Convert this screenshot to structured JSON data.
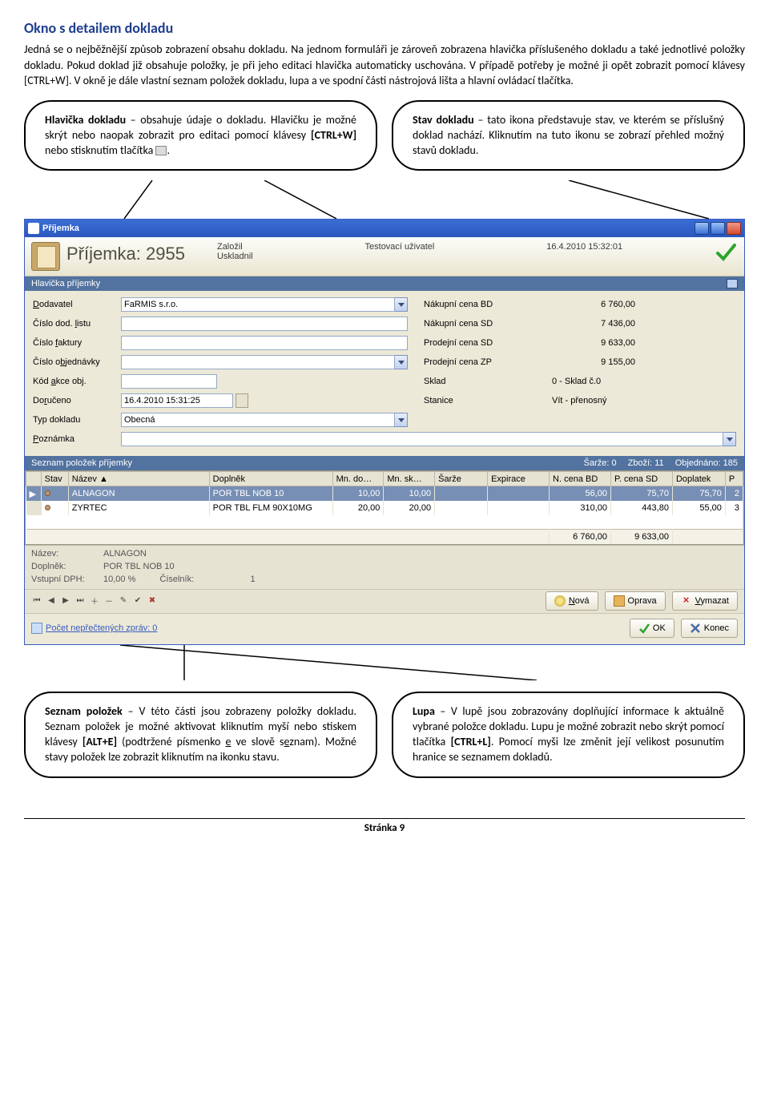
{
  "section_title": "Okno s detailem dokladu",
  "intro": "Jedná se o nejběžnější způsob zobrazení obsahu dokladu. Na jednom formuláři je zároveň zobrazena hlavička příslušeného dokladu a také jednotlivé položky dokladu. Pokud doklad již obsahuje položky, je při jeho editaci hlavička automaticky uschována. V případě potřeby je možné ji opět zobrazit pomocí klávesy [CTRL+W]. V okně je dále vlastní seznam položek dokladu, lupa a ve spodní části nástrojová lišta a hlavní ovládací tlačítka.",
  "callouts": {
    "top_left": "Hlavička dokladu – obsahuje údaje o dokladu. Hlavičku je možné skrýt nebo naopak zobrazit pro editaci pomocí klávesy [CTRL+W] nebo stisknutím tlačítka ",
    "top_right": "Stav dokladu – tato ikona představuje stav, ve kterém se příslušný doklad nachází. Kliknutím na tuto ikonu se zobrazí přehled možný stavů dokladu.",
    "bottom_left": "Seznam položek – V této části jsou zobrazeny položky dokladu. Seznam položek je možné aktivovat kliknutím myší nebo stiskem klávesy [ALT+E] (podtržené písmenko e ve slově seznam). Možné stavy položek lze zobrazit kliknutím na ikonku stavu.",
    "bottom_right": "Lupa – V lupě jsou zobrazovány doplňující informace k aktuálně vybrané položce dokladu. Lupu je možné zobrazit nebo skrýt pomocí tlačítka [CTRL+L]. Pomocí myši lze změnit její velikost posunutím hranice se seznamem dokladů."
  },
  "window": {
    "title": "Příjemka",
    "header_title": "Příjemka: 2955",
    "meta": {
      "zalozil_label": "Založil",
      "zalozil_value": "Testovací uživatel",
      "zalozil_date": "16.4.2010 15:32:01",
      "uskladnil_label": "Uskladnil"
    },
    "section_hlavicka": "Hlavička příjemky",
    "form_left": {
      "dodavatel_label": "Dodavatel",
      "dodavatel_value": "FaRMIS s.r.o.",
      "cislo_listu_label": "Číslo dod. listu",
      "cislo_faktury_label": "Číslo faktury",
      "cislo_obj_label": "Číslo objednávky",
      "kod_akce_label": "Kód akce obj.",
      "doruceno_label": "Doručeno",
      "doruceno_value": "16.4.2010 15:31:25",
      "typ_dokladu_label": "Typ dokladu",
      "typ_dokladu_value": "Obecná",
      "poznamka_label": "Poznámka"
    },
    "form_right": {
      "nak_bd_label": "Nákupní cena BD",
      "nak_bd_val": "6 760,00",
      "nak_sd_label": "Nákupní cena SD",
      "nak_sd_val": "7 436,00",
      "prod_sd_label": "Prodejní cena SD",
      "prod_sd_val": "9 633,00",
      "prod_zp_label": "Prodejní cena ZP",
      "prod_zp_val": "9 155,00",
      "sklad_label": "Sklad",
      "sklad_val": "0 - Sklad č.0",
      "stanice_label": "Stanice",
      "stanice_val": "Vít - přenosný"
    },
    "seznam_bar": {
      "title": "Seznam položek příjemky",
      "sarze_label": "Šarže:",
      "sarze_val": "0",
      "zbozi_label": "Zboží:",
      "zbozi_val": "11",
      "obj_label": "Objednáno:",
      "obj_val": "185"
    },
    "grid_headers": [
      "Stav",
      "Název",
      "Doplněk",
      "Mn. do…",
      "Mn. sk…",
      "Šarže",
      "Expirace",
      "N. cena BD",
      "P. cena SD",
      "Doplatek",
      "P"
    ],
    "grid_rows": [
      {
        "nazev": "ALNAGON",
        "doplnek": "POR TBL NOB 10",
        "mndo": "10,00",
        "mnsk": "10,00",
        "sarze": "",
        "exp": "",
        "ncbd": "56,00",
        "pcsd": "75,70",
        "dop": "75,70",
        "p": "2",
        "sel": true
      },
      {
        "nazev": "ZYRTEC",
        "doplnek": "POR TBL FLM 90X10MG",
        "mndo": "20,00",
        "mnsk": "20,00",
        "sarze": "",
        "exp": "",
        "ncbd": "310,00",
        "pcsd": "443,80",
        "dop": "55,00",
        "p": "3",
        "sel": false
      }
    ],
    "grid_footer": {
      "ncbd": "6 760,00",
      "pcsd": "9 633,00"
    },
    "lupa": {
      "nazev_label": "Název:",
      "nazev_val": "ALNAGON",
      "doplnek_label": "Doplněk:",
      "doplnek_val": "POR TBL NOB 10",
      "vstup_label": "Vstupní DPH:",
      "vstup_val": "10,00 %",
      "ciselnik_label": "Číselník:",
      "ciselnik_val": "1"
    },
    "status_msg": "Počet nepřečtených zpráv: 0",
    "buttons": {
      "nova": "Nová",
      "oprava": "Oprava",
      "vymazat": "Vymazat",
      "ok": "OK",
      "konec": "Konec"
    }
  },
  "page_footer": "Stránka 9"
}
